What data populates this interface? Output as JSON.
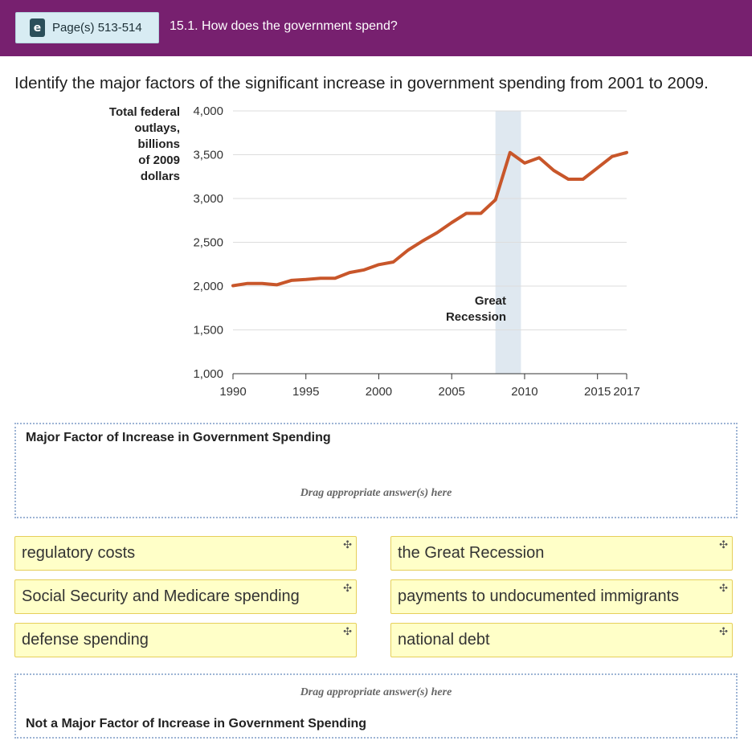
{
  "header": {
    "page_button_label": "Page(s) 513-514",
    "ebook_icon": "ebook-icon",
    "question_title": "15.1. How does the government spend?"
  },
  "prompt": "Identify the major factors of the significant increase in government spending from 2001 to 2009.",
  "chart_data": {
    "type": "line",
    "ylabel_lines": [
      "Total federal",
      "outlays,",
      "billions",
      "of 2009",
      "dollars"
    ],
    "annotation_lines": [
      "Great",
      "Recession"
    ],
    "shaded_region": [
      2008,
      2009.75
    ],
    "xlim": [
      1990,
      2017
    ],
    "ylim": [
      1000,
      4000
    ],
    "x_ticks": [
      1990,
      1995,
      2000,
      2005,
      2010,
      2015,
      2017
    ],
    "x_tick_labels": [
      "1990",
      "1995",
      "2000",
      "2005",
      "2010",
      "2015",
      "2017"
    ],
    "y_ticks": [
      1000,
      1500,
      2000,
      2500,
      3000,
      3500,
      4000
    ],
    "y_tick_labels": [
      "1,000",
      "1,500",
      "2,000",
      "2,500",
      "3,000",
      "3,500",
      "4,000"
    ],
    "x": [
      1990,
      1991,
      1992,
      1993,
      1994,
      1995,
      1996,
      1997,
      1998,
      1999,
      2000,
      2001,
      2002,
      2003,
      2004,
      2005,
      2006,
      2007,
      2008,
      2009,
      2010,
      2011,
      2012,
      2013,
      2014,
      2015,
      2016,
      2017
    ],
    "values": [
      2005,
      2030,
      2030,
      2015,
      2065,
      2075,
      2090,
      2090,
      2155,
      2185,
      2245,
      2275,
      2410,
      2515,
      2610,
      2725,
      2830,
      2830,
      2985,
      3525,
      3405,
      3465,
      3320,
      3220,
      3220,
      3350,
      3480,
      3525
    ],
    "line_color": "#c8562a",
    "shade_color": "#dfe8f0",
    "grid": true
  },
  "dropzones": {
    "top": {
      "title": "Major Factor of Increase in Government Spending",
      "hint": "Drag appropriate answer(s) here"
    },
    "bottom": {
      "title": "Not a Major Factor of Increase in Government Spending",
      "hint": "Drag appropriate answer(s) here"
    }
  },
  "answers": [
    "regulatory costs",
    "the Great Recession",
    "Social Security and Medicare spending",
    "payments to undocumented immigrants",
    "defense spending",
    "national debt"
  ],
  "move_icon_glyph": "✣",
  "colors": {
    "header": "#77206f",
    "chip_bg": "#ffffc8",
    "chip_border": "#e6cf5a"
  }
}
